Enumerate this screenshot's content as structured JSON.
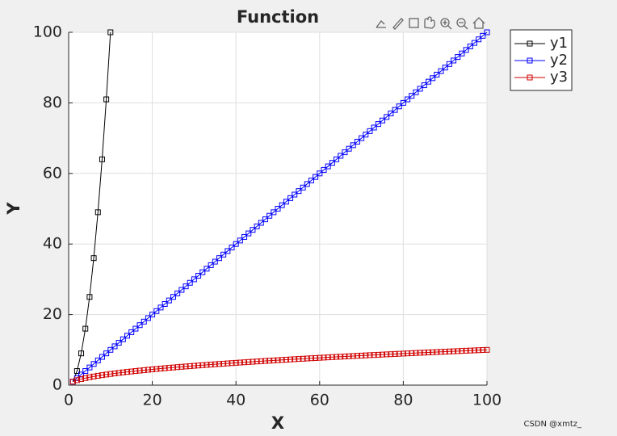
{
  "chart_data": {
    "type": "line",
    "title": "Function",
    "xlabel": "X",
    "ylabel": "Y",
    "xlim": [
      0,
      100
    ],
    "ylim": [
      0,
      100
    ],
    "xticks": [
      0,
      20,
      40,
      60,
      80,
      100
    ],
    "yticks": [
      0,
      20,
      40,
      60,
      80,
      100
    ],
    "grid": true,
    "legend": "outside-top-right",
    "annotation": "CSDN @xmtz_",
    "series": [
      {
        "name": "y1",
        "color": "#000000",
        "x": [
          1,
          2,
          3,
          4,
          5,
          6,
          7,
          8,
          9,
          10
        ],
        "values": [
          1,
          4,
          9,
          16,
          25,
          36,
          49,
          64,
          81,
          100
        ]
      },
      {
        "name": "y2",
        "color": "#0000ff",
        "x": [
          1,
          2,
          3,
          4,
          5,
          6,
          7,
          8,
          9,
          10,
          11,
          12,
          13,
          14,
          15,
          16,
          17,
          18,
          19,
          20,
          21,
          22,
          23,
          24,
          25,
          26,
          27,
          28,
          29,
          30,
          31,
          32,
          33,
          34,
          35,
          36,
          37,
          38,
          39,
          40,
          41,
          42,
          43,
          44,
          45,
          46,
          47,
          48,
          49,
          50,
          51,
          52,
          53,
          54,
          55,
          56,
          57,
          58,
          59,
          60,
          61,
          62,
          63,
          64,
          65,
          66,
          67,
          68,
          69,
          70,
          71,
          72,
          73,
          74,
          75,
          76,
          77,
          78,
          79,
          80,
          81,
          82,
          83,
          84,
          85,
          86,
          87,
          88,
          89,
          90,
          91,
          92,
          93,
          94,
          95,
          96,
          97,
          98,
          99,
          100
        ],
        "values": [
          1,
          2,
          3,
          4,
          5,
          6,
          7,
          8,
          9,
          10,
          11,
          12,
          13,
          14,
          15,
          16,
          17,
          18,
          19,
          20,
          21,
          22,
          23,
          24,
          25,
          26,
          27,
          28,
          29,
          30,
          31,
          32,
          33,
          34,
          35,
          36,
          37,
          38,
          39,
          40,
          41,
          42,
          43,
          44,
          45,
          46,
          47,
          48,
          49,
          50,
          51,
          52,
          53,
          54,
          55,
          56,
          57,
          58,
          59,
          60,
          61,
          62,
          63,
          64,
          65,
          66,
          67,
          68,
          69,
          70,
          71,
          72,
          73,
          74,
          75,
          76,
          77,
          78,
          79,
          80,
          81,
          82,
          83,
          84,
          85,
          86,
          87,
          88,
          89,
          90,
          91,
          92,
          93,
          94,
          95,
          96,
          97,
          98,
          99,
          100
        ]
      },
      {
        "name": "y3",
        "color": "#d00000",
        "x": [
          1,
          2,
          3,
          4,
          5,
          6,
          7,
          8,
          9,
          10,
          11,
          12,
          13,
          14,
          15,
          16,
          17,
          18,
          19,
          20,
          21,
          22,
          23,
          24,
          25,
          26,
          27,
          28,
          29,
          30,
          31,
          32,
          33,
          34,
          35,
          36,
          37,
          38,
          39,
          40,
          41,
          42,
          43,
          44,
          45,
          46,
          47,
          48,
          49,
          50,
          51,
          52,
          53,
          54,
          55,
          56,
          57,
          58,
          59,
          60,
          61,
          62,
          63,
          64,
          65,
          66,
          67,
          68,
          69,
          70,
          71,
          72,
          73,
          74,
          75,
          76,
          77,
          78,
          79,
          80,
          81,
          82,
          83,
          84,
          85,
          86,
          87,
          88,
          89,
          90,
          91,
          92,
          93,
          94,
          95,
          96,
          97,
          98,
          99,
          100
        ],
        "values": [
          1,
          1.41,
          1.73,
          2,
          2.24,
          2.45,
          2.65,
          2.83,
          3,
          3.16,
          3.32,
          3.46,
          3.61,
          3.74,
          3.87,
          4,
          4.12,
          4.24,
          4.36,
          4.47,
          4.58,
          4.69,
          4.8,
          4.9,
          5,
          5.1,
          5.2,
          5.29,
          5.39,
          5.48,
          5.57,
          5.66,
          5.74,
          5.83,
          5.92,
          6,
          6.08,
          6.16,
          6.24,
          6.32,
          6.4,
          6.48,
          6.56,
          6.63,
          6.71,
          6.78,
          6.86,
          6.93,
          7,
          7.07,
          7.14,
          7.21,
          7.28,
          7.35,
          7.42,
          7.48,
          7.55,
          7.62,
          7.68,
          7.75,
          7.81,
          7.87,
          7.94,
          8,
          8.06,
          8.12,
          8.19,
          8.25,
          8.31,
          8.37,
          8.43,
          8.49,
          8.54,
          8.6,
          8.66,
          8.72,
          8.77,
          8.83,
          8.89,
          8.94,
          9,
          9.06,
          9.11,
          9.17,
          9.22,
          9.27,
          9.33,
          9.38,
          9.43,
          9.49,
          9.54,
          9.59,
          9.64,
          9.7,
          9.75,
          9.8,
          9.85,
          9.9,
          9.95,
          10
        ]
      }
    ]
  }
}
